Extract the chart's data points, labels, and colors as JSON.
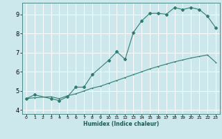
{
  "title": "",
  "xlabel": "Humidex (Indice chaleur)",
  "xlim": [
    -0.5,
    23.5
  ],
  "ylim": [
    3.8,
    9.6
  ],
  "yticks": [
    4,
    5,
    6,
    7,
    8,
    9
  ],
  "xticks": [
    0,
    1,
    2,
    3,
    4,
    5,
    6,
    7,
    8,
    9,
    10,
    11,
    12,
    13,
    14,
    15,
    16,
    17,
    18,
    19,
    20,
    21,
    22,
    23
  ],
  "bg_color": "#cce8ec",
  "grid_color": "#ffffff",
  "line_color": "#2d7d72",
  "line1_x": [
    0,
    1,
    3,
    4,
    5,
    6,
    7,
    8,
    10,
    11,
    12,
    13,
    14,
    15,
    16,
    17,
    18,
    19,
    20,
    21,
    22,
    23
  ],
  "line1_y": [
    4.6,
    4.8,
    4.6,
    4.5,
    4.7,
    5.2,
    5.2,
    5.85,
    6.6,
    7.05,
    6.65,
    8.05,
    8.65,
    9.05,
    9.05,
    9.0,
    9.35,
    9.25,
    9.35,
    9.25,
    8.9,
    8.3
  ],
  "line2_x": [
    0,
    1,
    3,
    4,
    5,
    6,
    7,
    8,
    9,
    10,
    11,
    12,
    13,
    14,
    15,
    16,
    17,
    18,
    19,
    20,
    21,
    22,
    23
  ],
  "line2_y": [
    4.6,
    4.65,
    4.7,
    4.6,
    4.75,
    4.85,
    5.0,
    5.15,
    5.25,
    5.4,
    5.55,
    5.7,
    5.85,
    6.0,
    6.15,
    6.28,
    6.4,
    6.52,
    6.62,
    6.72,
    6.8,
    6.88,
    6.5
  ]
}
